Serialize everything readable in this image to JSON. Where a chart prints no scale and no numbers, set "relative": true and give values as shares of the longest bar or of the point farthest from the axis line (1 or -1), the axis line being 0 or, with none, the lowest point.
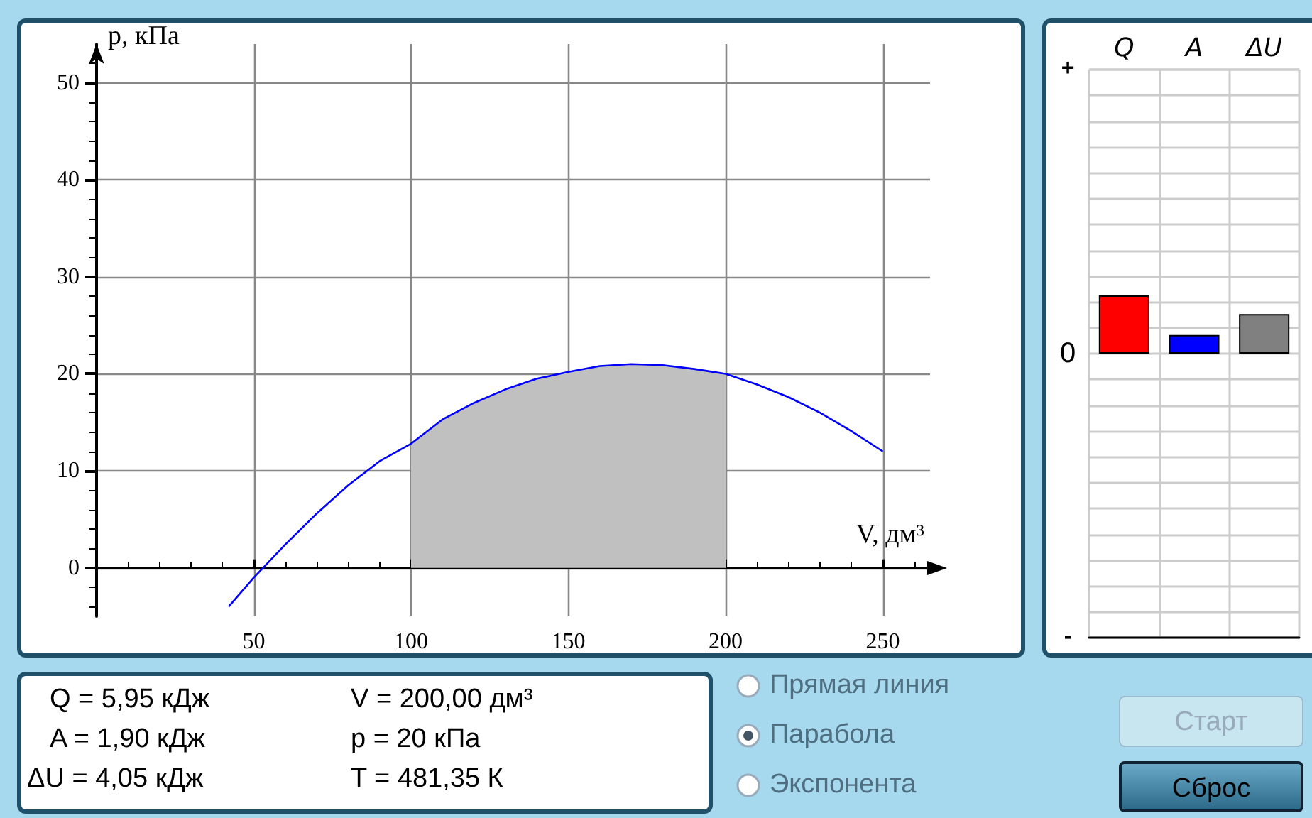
{
  "chart_data": [
    {
      "type": "line",
      "xlabel": "V, дм³",
      "ylabel": "p, кПа",
      "xlim": [
        0,
        265
      ],
      "ylim": [
        -5,
        54
      ],
      "xticks": [
        50,
        100,
        150,
        200,
        250
      ],
      "yticks": [
        0,
        10,
        20,
        30,
        40,
        50
      ],
      "grid": true,
      "series": [
        {
          "type": "area",
          "color": "#c0c0c0",
          "x": [
            100,
            110,
            120,
            130,
            140,
            150,
            160,
            170,
            180,
            190,
            200
          ],
          "values": [
            12.8,
            15.3,
            17.0,
            18.4,
            19.5,
            20.2,
            20.8,
            21.0,
            20.9,
            20.5,
            20.0
          ]
        },
        {
          "type": "line",
          "color": "#0000ff",
          "x": [
            42,
            50,
            60,
            70,
            80,
            90,
            100,
            110,
            120,
            130,
            140,
            150,
            160,
            170,
            180,
            190,
            200,
            210,
            220,
            230,
            240,
            250
          ],
          "values": [
            -4.0,
            -1.0,
            2.4,
            5.6,
            8.5,
            11.0,
            12.8,
            15.3,
            17.0,
            18.4,
            19.5,
            20.2,
            20.8,
            21.0,
            20.9,
            20.5,
            20.0,
            18.9,
            17.6,
            16.0,
            14.1,
            12.0
          ]
        }
      ]
    },
    {
      "type": "bar",
      "relative": true,
      "categories": [
        "Q",
        "A",
        "ΔU"
      ],
      "values": [
        1,
        0.32,
        0.68
      ],
      "colors": [
        "#ff0000",
        "#0000ff",
        "#808080"
      ],
      "grid": true,
      "annotations": [
        "+",
        "0",
        "-"
      ]
    },
    {
      "type": "other",
      "annotations": [
        "Q = 5,95 кДж",
        "A = 1,90 кДж",
        "ΔU = 4,05 кДж",
        "V = 200,00 дм³",
        "p = 20 кПа",
        "T = 481,35 К",
        "Прямая линия",
        "Парабола",
        "Экспонента",
        "Старт",
        "Сброс"
      ]
    }
  ]
}
